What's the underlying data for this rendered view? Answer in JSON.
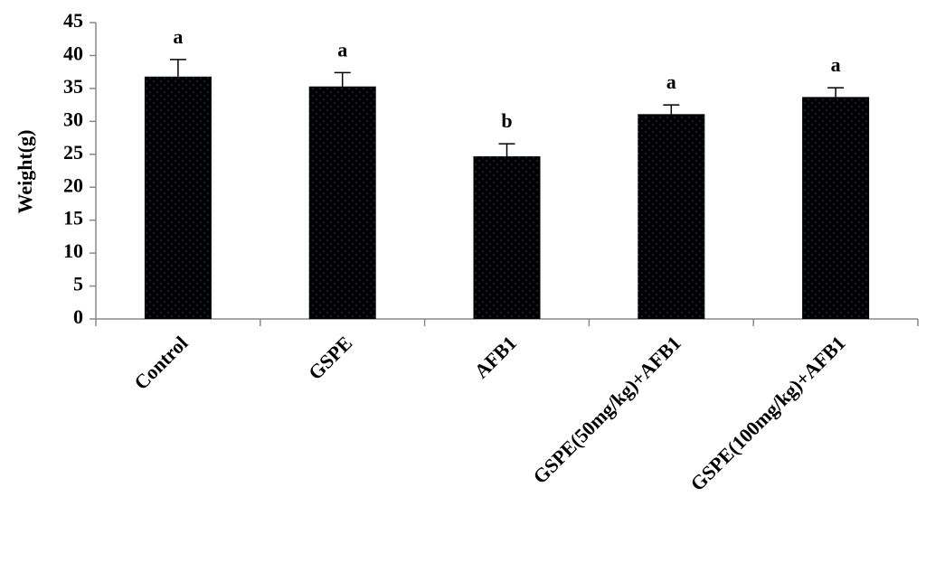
{
  "chart_data": {
    "type": "bar",
    "y_label": "Weight(g)",
    "categories": [
      "Control",
      "GSPE",
      "AFB1",
      "GSPE(50mg/kg)+AFB1",
      "GSPE(100mg/kg)+AFB1"
    ],
    "values": [
      36.8,
      35.3,
      24.7,
      31.1,
      33.7
    ],
    "errors": [
      2.6,
      2.1,
      1.9,
      1.4,
      1.4
    ],
    "annotations": [
      "a",
      "a",
      "b",
      "a",
      "a"
    ],
    "color": "#000000",
    "ylim": [
      0,
      45
    ],
    "yticks": [
      0,
      5,
      10,
      15,
      20,
      25,
      30,
      35,
      40,
      45
    ],
    "grid": false
  }
}
